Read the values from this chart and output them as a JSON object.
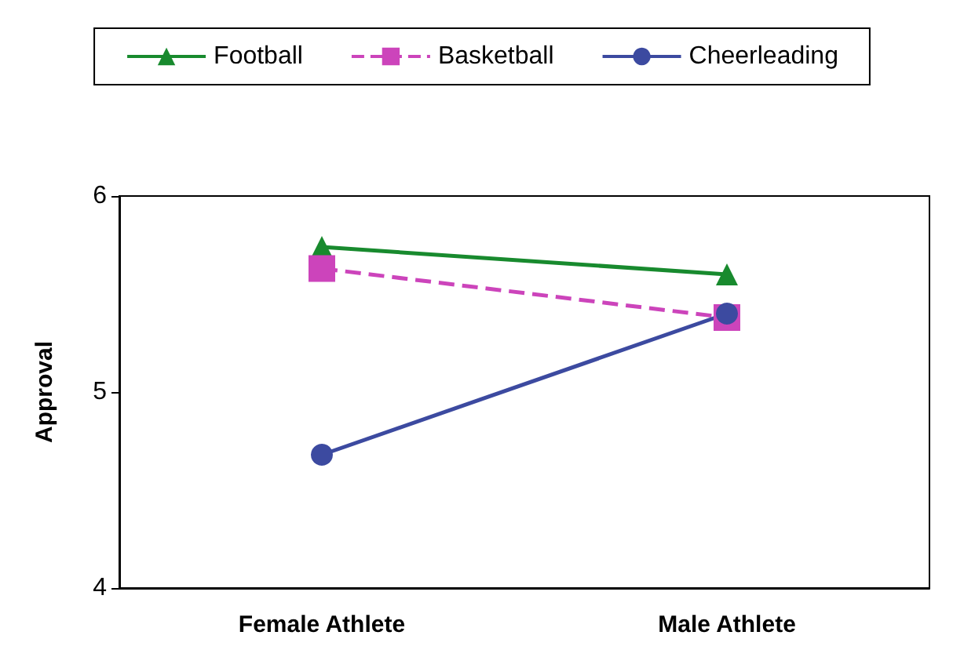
{
  "chart_data": {
    "type": "line",
    "ylabel": "Approval",
    "categories": [
      "Female Athlete",
      "Male Athlete"
    ],
    "series": [
      {
        "name": "Football",
        "color": "#188a2e",
        "values": [
          5.74,
          5.6
        ],
        "marker": "triangle",
        "line_style": "solid"
      },
      {
        "name": "Basketball",
        "color": "#cc44bb",
        "values": [
          5.63,
          5.38
        ],
        "marker": "square",
        "line_style": "dashed"
      },
      {
        "name": "Cheerleading",
        "color": "#3c4aa0",
        "values": [
          4.68,
          5.4
        ],
        "marker": "circle",
        "line_style": "solid"
      }
    ],
    "ylim": [
      4,
      6
    ],
    "yticks": [
      4,
      5,
      6
    ],
    "grid": false,
    "legend": "top"
  }
}
